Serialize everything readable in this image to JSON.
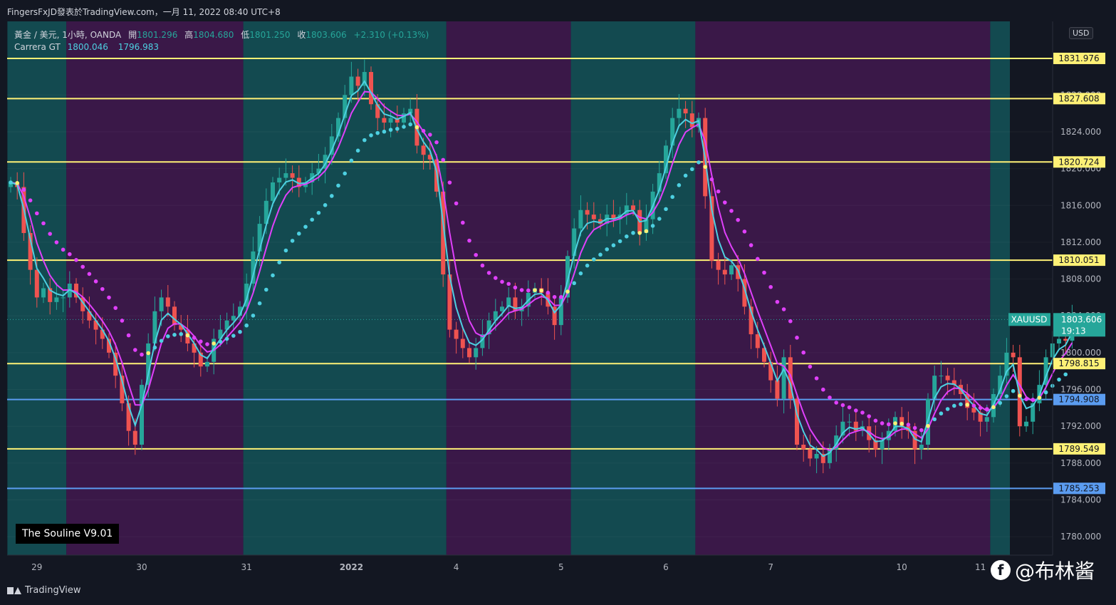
{
  "header": {
    "title": "FingersFxJD發表於TradingView.com，一月 11, 2022 08:40 UTC+8"
  },
  "legend": {
    "symbol": "黃金 / 美元, 1小時, OANDA",
    "open_label": "開",
    "open": "1801.296",
    "high_label": "高",
    "high": "1804.680",
    "low_label": "低",
    "low": "1801.250",
    "close_label": "收",
    "close": "1803.606",
    "change": "+2.310 (+0.13%)",
    "indicator_name": "Carrera GT",
    "indicator_v1": "1800.046",
    "indicator_v2": "1796.983"
  },
  "currency": "USD",
  "indicator_label": "The Souline V9.01",
  "branding": {
    "tv_label": "TradingView",
    "watermark": "@布林酱",
    "watermark_icon": "f"
  },
  "colors": {
    "background": "#131722",
    "teal_zone": "#134a50",
    "purple_zone": "#3a1848",
    "bull": "#26a69a",
    "bear": "#ef5350",
    "yellow_line": "#fff176",
    "blue_line": "#5b9cf0",
    "cyan": "#4dd0e1",
    "magenta": "#e040fb"
  },
  "chart_data": {
    "type": "candlestick",
    "symbol_tag": "XAUUSD",
    "last_price": "1803.606",
    "countdown": "19:13",
    "ylim": [
      1778.0,
      1836.0
    ],
    "y_ticks": [
      1780,
      1784,
      1788,
      1792,
      1796,
      1800,
      1804,
      1808,
      1812,
      1816,
      1820,
      1824,
      1828,
      1832
    ],
    "x_ticks": [
      {
        "label": "29",
        "i": 4
      },
      {
        "label": "30",
        "i": 20
      },
      {
        "label": "31",
        "i": 36
      },
      {
        "label": "2022",
        "i": 52
      },
      {
        "label": "4",
        "i": 68
      },
      {
        "label": "5",
        "i": 84
      },
      {
        "label": "6",
        "i": 100
      },
      {
        "label": "7",
        "i": 116
      },
      {
        "label": "10",
        "i": 136
      },
      {
        "label": "11",
        "i": 148
      }
    ],
    "levels": [
      {
        "price": 1831.976,
        "label": "1831.976",
        "kind": "yellow"
      },
      {
        "price": 1827.608,
        "label": "1827.608",
        "kind": "yellow"
      },
      {
        "price": 1820.724,
        "label": "1820.724",
        "kind": "yellow"
      },
      {
        "price": 1810.051,
        "label": "1810.051",
        "kind": "yellow"
      },
      {
        "price": 1798.815,
        "label": "1798.815",
        "kind": "yellow"
      },
      {
        "price": 1794.908,
        "label": "1794.908",
        "kind": "blue"
      },
      {
        "price": 1789.549,
        "label": "1789.549",
        "kind": "yellow"
      },
      {
        "price": 1785.253,
        "label": "1785.253",
        "kind": "blue"
      }
    ],
    "zones": [
      {
        "start": 0,
        "end": 9,
        "kind": "teal"
      },
      {
        "start": 9,
        "end": 36,
        "kind": "purple"
      },
      {
        "start": 36,
        "end": 67,
        "kind": "teal"
      },
      {
        "start": 67,
        "end": 86,
        "kind": "purple"
      },
      {
        "start": 86,
        "end": 105,
        "kind": "teal"
      },
      {
        "start": 105,
        "end": 150,
        "kind": "purple"
      },
      {
        "start": 150,
        "end": 153,
        "kind": "teal"
      }
    ],
    "closes": [
      1818.5,
      1818.0,
      1813.0,
      1809.0,
      1806.0,
      1807.0,
      1805.5,
      1806.0,
      1806.0,
      1807.5,
      1806.0,
      1804.5,
      1803.5,
      1802.5,
      1801.5,
      1800.0,
      1797.5,
      1794.5,
      1791.5,
      1790.0,
      1796.5,
      1801.0,
      1804.5,
      1806.0,
      1805.0,
      1803.0,
      1802.5,
      1801.0,
      1800.0,
      1798.5,
      1799.0,
      1801.5,
      1802.5,
      1803.5,
      1804.0,
      1805.0,
      1807.5,
      1811.0,
      1814.0,
      1816.5,
      1818.5,
      1819.0,
      1819.5,
      1819.0,
      1818.0,
      1818.5,
      1819.5,
      1820.0,
      1821.5,
      1823.5,
      1825.5,
      1828.0,
      1830.0,
      1829.0,
      1830.5,
      1827.0,
      1825.5,
      1825.0,
      1825.5,
      1825.0,
      1826.0,
      1826.5,
      1822.5,
      1821.5,
      1821.0,
      1817.5,
      1808.5,
      1802.5,
      1801.5,
      1800.5,
      1799.5,
      1800.5,
      1802.0,
      1803.5,
      1804.5,
      1805.0,
      1806.0,
      1804.5,
      1805.0,
      1806.5,
      1807.0,
      1806.5,
      1805.0,
      1803.0,
      1806.0,
      1810.5,
      1813.5,
      1815.5,
      1815.0,
      1814.5,
      1814.0,
      1815.0,
      1814.5,
      1815.0,
      1816.0,
      1815.5,
      1813.0,
      1814.5,
      1817.5,
      1819.5,
      1822.5,
      1825.5,
      1826.5,
      1826.0,
      1824.5,
      1825.5,
      1817.0,
      1810.0,
      1809.0,
      1808.5,
      1809.5,
      1808.0,
      1805.0,
      1802.0,
      1800.5,
      1799.0,
      1797.0,
      1795.0,
      1799.5,
      1795.0,
      1790.0,
      1789.5,
      1788.5,
      1789.0,
      1788.0,
      1789.5,
      1791.0,
      1792.5,
      1792.5,
      1791.5,
      1792.0,
      1790.5,
      1789.5,
      1790.5,
      1791.5,
      1793.0,
      1792.0,
      1791.5,
      1789.5,
      1790.0,
      1795.0,
      1797.5,
      1797.5,
      1797.0,
      1796.5,
      1795.5,
      1794.0,
      1793.5,
      1792.5,
      1793.0,
      1795.5,
      1797.5,
      1800.0,
      1799.5,
      1792.0,
      1792.5,
      1794.5,
      1796.5,
      1799.5,
      1801.0,
      1801.5,
      1801.3,
      1803.6
    ]
  }
}
